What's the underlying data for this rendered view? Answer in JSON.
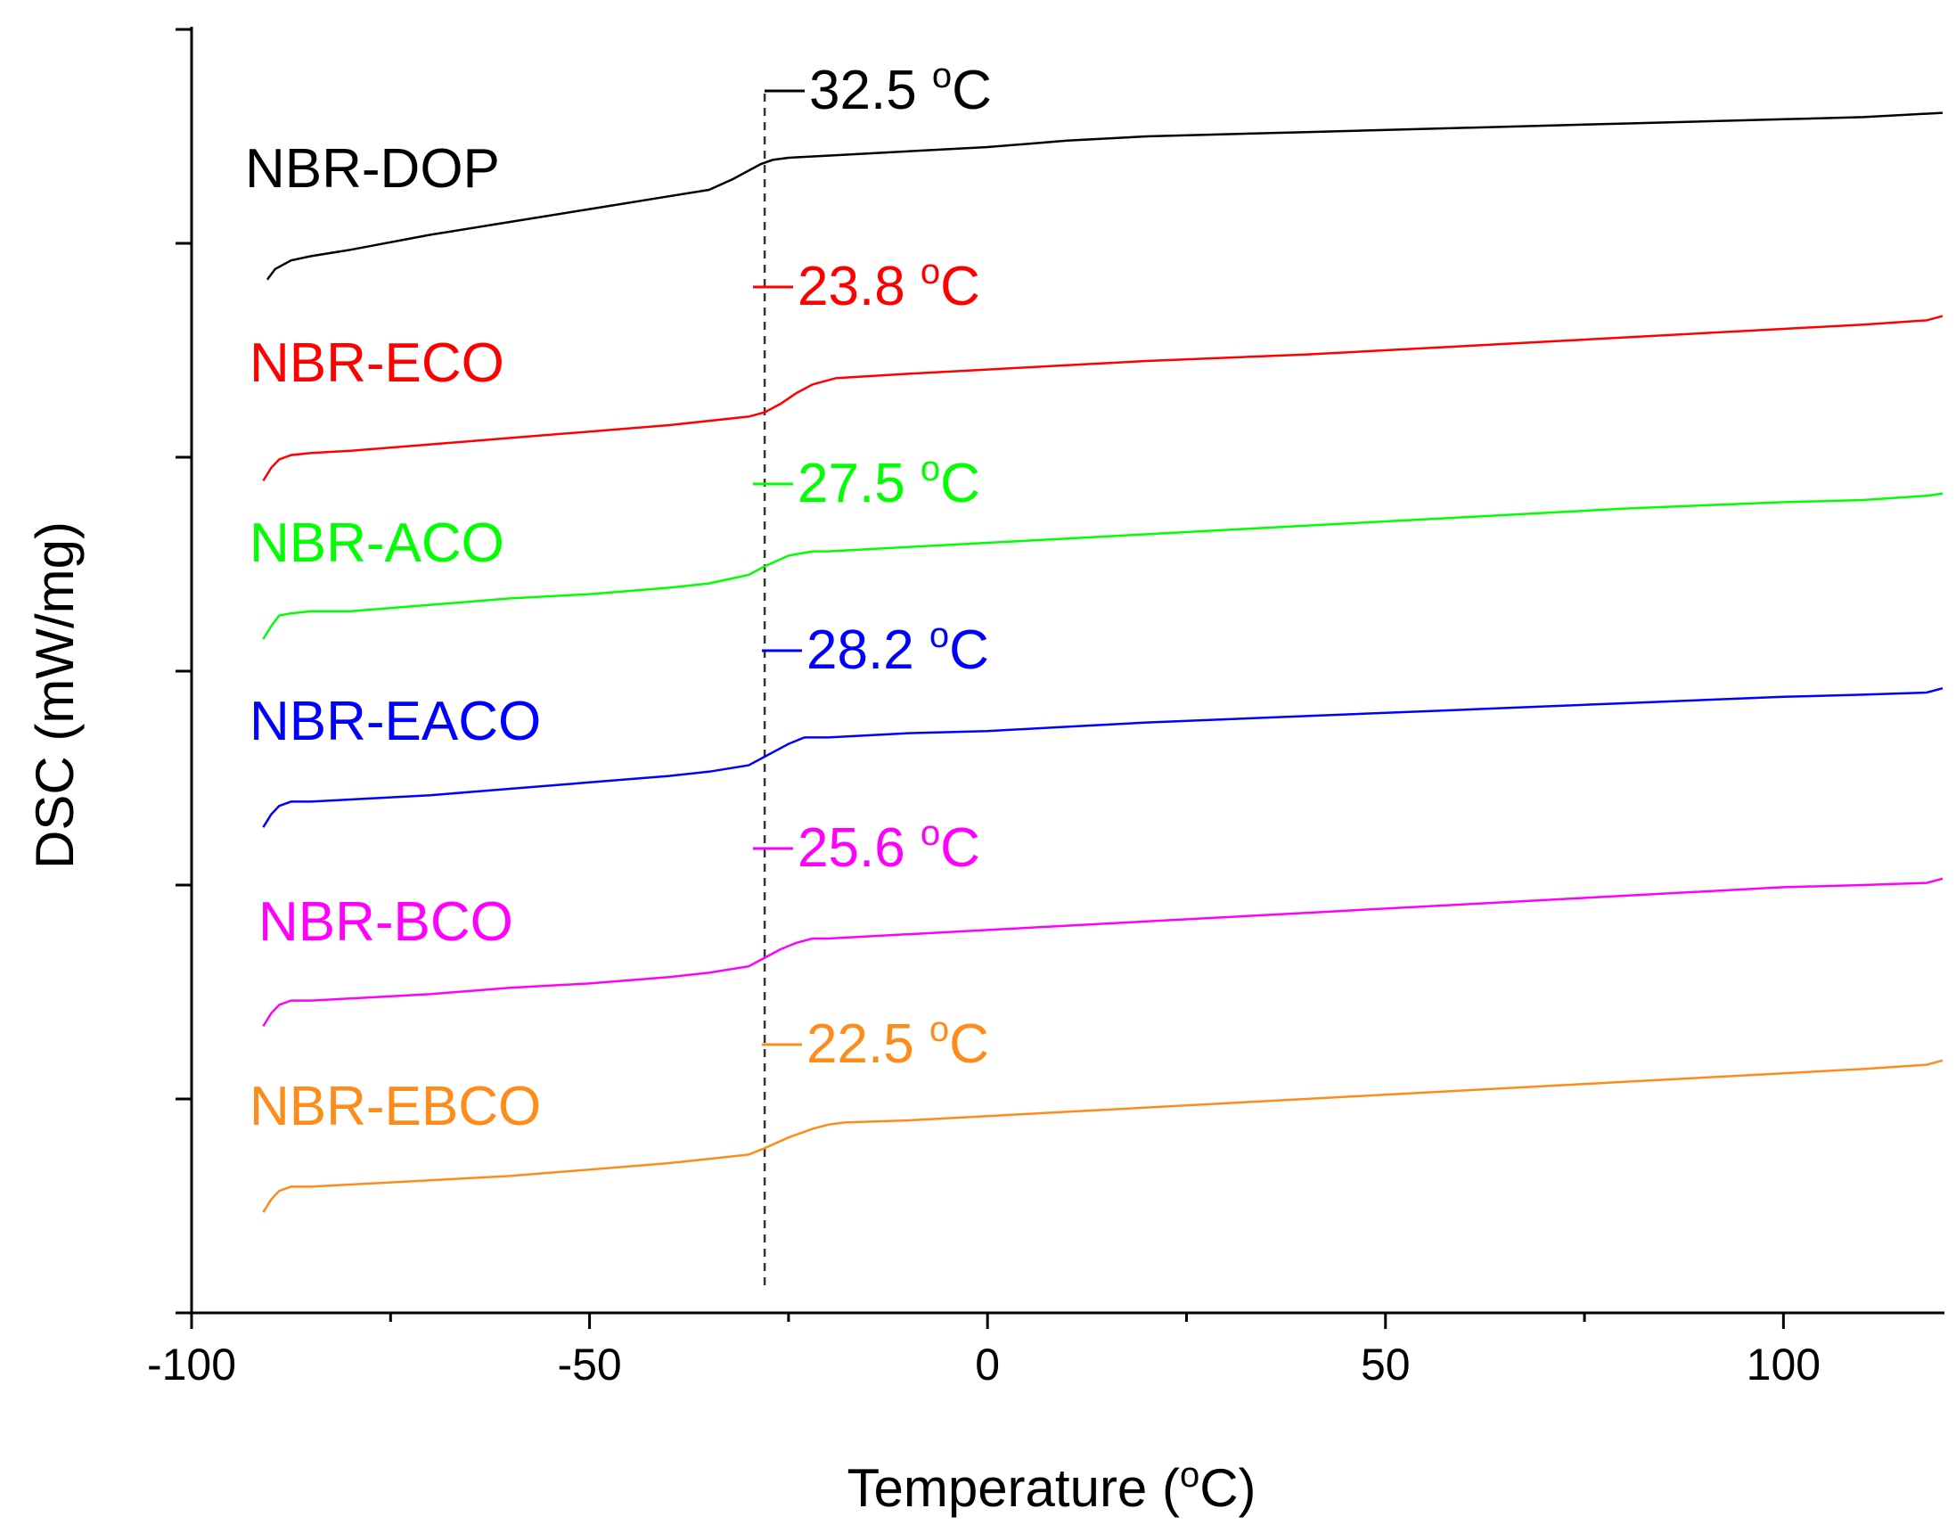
{
  "chart_data": {
    "type": "line",
    "title": "",
    "xlabel": "Temperature",
    "xlabel_unit_prefix": "o",
    "xlabel_unit": "C",
    "ylabel": "DSC (mW/mg)",
    "xlim": [
      -100,
      120
    ],
    "x_ticks": [
      -100,
      -50,
      0,
      50,
      100
    ],
    "x_tick_labels": [
      "-100",
      "-50",
      "0",
      "50",
      "100"
    ],
    "x_minor_ticks": [
      -75,
      -25,
      25,
      75
    ],
    "ylim": [
      0,
      6
    ],
    "y_ticks": [
      0,
      1,
      2,
      3,
      4,
      5,
      6
    ],
    "y_tick_labels_shown": false,
    "reference_line_x": -28,
    "degree_symbol": "o",
    "unit_symbol": "C",
    "series": [
      {
        "name": "NBR-DOP",
        "color": "#000000",
        "tg": "32.5",
        "tg_prefix": "—",
        "x": [
          -90.5,
          -89.5,
          -87.5,
          -85,
          -80,
          -70,
          -60,
          -50,
          -40,
          -35,
          -32,
          -30,
          -28.5,
          -27,
          -25,
          -20,
          -10,
          0,
          10,
          20,
          40,
          60,
          80,
          100,
          110,
          120
        ],
        "y": [
          4.83,
          4.88,
          4.92,
          4.94,
          4.97,
          5.04,
          5.1,
          5.16,
          5.22,
          5.25,
          5.3,
          5.34,
          5.37,
          5.39,
          5.4,
          5.41,
          5.43,
          5.45,
          5.48,
          5.5,
          5.52,
          5.54,
          5.56,
          5.58,
          5.59,
          5.61
        ]
      },
      {
        "name": "NBR-ECO",
        "color": "#ff0000",
        "tg": "23.8",
        "tg_prefix": "—",
        "x": [
          -91,
          -90,
          -89,
          -87.5,
          -85,
          -80,
          -70,
          -60,
          -50,
          -40,
          -30,
          -28,
          -26,
          -24,
          -22,
          -20,
          -19,
          -10,
          0,
          10,
          20,
          40,
          60,
          80,
          100,
          110,
          118,
          120
        ],
        "y": [
          3.89,
          3.95,
          3.99,
          4.01,
          4.02,
          4.03,
          4.06,
          4.09,
          4.12,
          4.15,
          4.19,
          4.21,
          4.25,
          4.3,
          4.34,
          4.36,
          4.37,
          4.39,
          4.41,
          4.43,
          4.45,
          4.48,
          4.52,
          4.56,
          4.6,
          4.62,
          4.64,
          4.66
        ]
      },
      {
        "name": "NBR-ACO",
        "color": "#00ff00",
        "tg": "27.5",
        "tg_prefix": "—",
        "x": [
          -91,
          -90,
          -89,
          -87.5,
          -85,
          -80,
          -70,
          -60,
          -50,
          -40,
          -35,
          -30,
          -28,
          -25,
          -22,
          -20,
          -10,
          0,
          10,
          20,
          40,
          60,
          80,
          100,
          110,
          118,
          120
        ],
        "y": [
          3.15,
          3.21,
          3.26,
          3.27,
          3.28,
          3.28,
          3.31,
          3.34,
          3.36,
          3.39,
          3.41,
          3.45,
          3.49,
          3.54,
          3.56,
          3.56,
          3.58,
          3.6,
          3.62,
          3.64,
          3.68,
          3.72,
          3.76,
          3.79,
          3.8,
          3.82,
          3.83
        ]
      },
      {
        "name": "NBR-EACO",
        "color": "#0000ff",
        "tg": "28.2",
        "tg_prefix": "—",
        "x": [
          -91,
          -90,
          -89,
          -87.5,
          -85,
          -80,
          -70,
          -60,
          -50,
          -40,
          -35,
          -30,
          -28,
          -25,
          -23,
          -20,
          -10,
          0,
          10,
          20,
          40,
          60,
          80,
          100,
          110,
          118,
          120
        ],
        "y": [
          2.27,
          2.33,
          2.37,
          2.39,
          2.39,
          2.4,
          2.42,
          2.45,
          2.48,
          2.51,
          2.53,
          2.56,
          2.6,
          2.66,
          2.69,
          2.69,
          2.71,
          2.72,
          2.74,
          2.76,
          2.79,
          2.82,
          2.85,
          2.88,
          2.89,
          2.9,
          2.92
        ]
      },
      {
        "name": "NBR-BCO",
        "color": "#ff00ff",
        "tg": "25.6",
        "tg_prefix": "—",
        "x": [
          -91,
          -90,
          -89,
          -87.5,
          -85,
          -80,
          -70,
          -60,
          -50,
          -40,
          -35,
          -30,
          -28,
          -26,
          -24,
          -22,
          -20,
          -10,
          0,
          10,
          20,
          40,
          60,
          80,
          100,
          110,
          118,
          120
        ],
        "y": [
          1.34,
          1.4,
          1.44,
          1.46,
          1.46,
          1.47,
          1.49,
          1.52,
          1.54,
          1.57,
          1.59,
          1.62,
          1.66,
          1.7,
          1.73,
          1.75,
          1.75,
          1.77,
          1.79,
          1.81,
          1.83,
          1.87,
          1.91,
          1.95,
          1.99,
          2.0,
          2.01,
          2.03
        ]
      },
      {
        "name": "NBR-EBCO",
        "color": "#ff8c1a",
        "tg": "22.5",
        "tg_prefix": "—",
        "x": [
          -91,
          -90,
          -89,
          -87.5,
          -85,
          -80,
          -70,
          -60,
          -50,
          -40,
          -35,
          -30,
          -28,
          -25,
          -22,
          -20,
          -18,
          -10,
          0,
          10,
          20,
          40,
          60,
          80,
          100,
          110,
          118,
          120
        ],
        "y": [
          0.47,
          0.53,
          0.57,
          0.59,
          0.59,
          0.6,
          0.62,
          0.64,
          0.67,
          0.7,
          0.72,
          0.74,
          0.77,
          0.82,
          0.86,
          0.88,
          0.89,
          0.9,
          0.92,
          0.94,
          0.96,
          1.0,
          1.04,
          1.08,
          1.12,
          1.14,
          1.16,
          1.18
        ]
      }
    ]
  }
}
